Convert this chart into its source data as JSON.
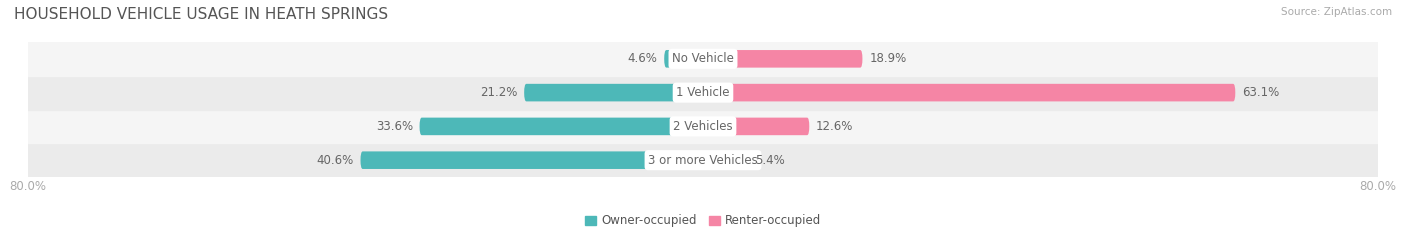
{
  "title": "HOUSEHOLD VEHICLE USAGE IN HEATH SPRINGS",
  "source": "Source: ZipAtlas.com",
  "categories": [
    "3 or more Vehicles",
    "2 Vehicles",
    "1 Vehicle",
    "No Vehicle"
  ],
  "owner_values": [
    40.6,
    33.6,
    21.2,
    4.6
  ],
  "renter_values": [
    5.4,
    12.6,
    63.1,
    18.9
  ],
  "owner_color": "#4db8b8",
  "renter_color": "#f585a5",
  "row_bg_colors": [
    "#ebebeb",
    "#f5f5f5",
    "#ebebeb",
    "#f5f5f5"
  ],
  "x_min": -80.0,
  "x_max": 80.0,
  "legend_labels": [
    "Owner-occupied",
    "Renter-occupied"
  ],
  "title_fontsize": 11,
  "label_fontsize": 8.5,
  "tick_fontsize": 8.5,
  "bar_height": 0.52
}
